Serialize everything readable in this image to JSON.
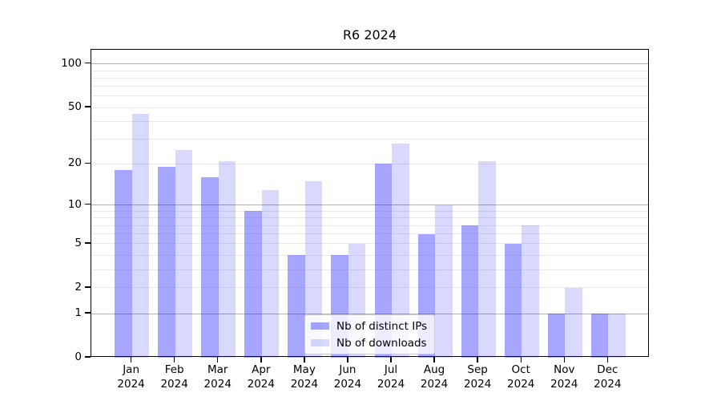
{
  "chart_data": {
    "type": "bar",
    "title": "R6 2024",
    "categories": [
      "Jan",
      "Feb",
      "Mar",
      "Apr",
      "May",
      "Jun",
      "Jul",
      "Aug",
      "Sep",
      "Oct",
      "Nov",
      "Dec"
    ],
    "year": "2024",
    "series": [
      {
        "name": "Nb of distinct IPs",
        "color": "rgba(0,0,255,0.35)",
        "values": [
          18,
          19,
          16,
          9,
          4,
          4,
          20,
          6,
          7,
          5,
          1,
          1
        ]
      },
      {
        "name": "Nb of downloads",
        "color": "rgba(0,0,255,0.15)",
        "values": [
          45,
          25,
          21,
          13,
          15,
          5,
          28,
          10,
          21,
          7,
          2,
          1
        ]
      }
    ],
    "y_axis": {
      "scale": "log1p",
      "tick_labels": [
        100,
        50,
        20,
        10,
        5,
        2,
        1,
        0
      ],
      "major_gridlines": [
        1,
        10,
        100
      ],
      "minor_gridlines": [
        2,
        3,
        4,
        5,
        6,
        7,
        8,
        9,
        20,
        30,
        40,
        50,
        60,
        70,
        80,
        90
      ],
      "ylim": [
        0,
        125.4
      ],
      "grid": true
    },
    "legend": {
      "position": "lower-center",
      "entries": [
        "Nb of distinct IPs",
        "Nb of downloads"
      ]
    },
    "colors": {
      "bar_ips": "rgba(0,0,255,0.35)",
      "bar_downloads": "rgba(0,0,255,0.15)",
      "major_grid": "#b3b3b3",
      "minor_grid": "#ebebeb",
      "spine": "#000000"
    }
  }
}
